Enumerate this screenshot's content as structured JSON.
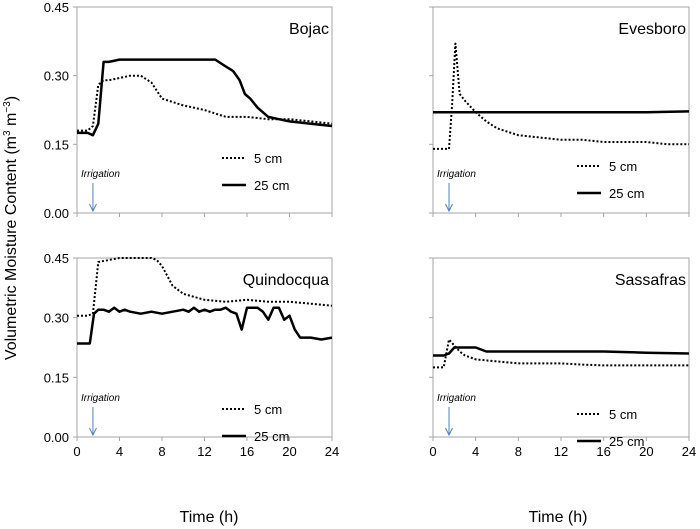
{
  "figure": {
    "ylabel_main": "Volumetric Moisture Content (m",
    "ylabel_sup1": "3",
    "ylabel_mid": " m",
    "ylabel_sup2": "−3",
    "ylabel_end": ")",
    "xlabel": "Time (h)"
  },
  "chart_data": [
    {
      "type": "line",
      "title": "Bojac",
      "xlabel": "Time (h)",
      "ylabel": "Volumetric Moisture Content (m3 m-3)",
      "xlim": [
        0,
        24
      ],
      "ylim": [
        0,
        0.45
      ],
      "xticks": [],
      "yticks": [
        "0.00",
        "0.15",
        "0.30",
        "0.45"
      ],
      "annotation": "Irrigation",
      "annotation_x": 1.5,
      "series": [
        {
          "name": "5 cm",
          "style": "dotted",
          "x": [
            0,
            1,
            1.5,
            2,
            2.5,
            3,
            4,
            5,
            6,
            7,
            8,
            10,
            12,
            14,
            16,
            18,
            20,
            22,
            24
          ],
          "y": [
            0.18,
            0.18,
            0.19,
            0.28,
            0.29,
            0.29,
            0.295,
            0.3,
            0.3,
            0.285,
            0.25,
            0.235,
            0.225,
            0.21,
            0.21,
            0.205,
            0.205,
            0.2,
            0.195
          ]
        },
        {
          "name": "25 cm",
          "style": "solid",
          "x": [
            0,
            1,
            1.5,
            2,
            2.5,
            3,
            4,
            6,
            8,
            10,
            12,
            13,
            14,
            14.7,
            15.3,
            15.8,
            16.3,
            17,
            18,
            19,
            20,
            22,
            24
          ],
          "y": [
            0.175,
            0.175,
            0.17,
            0.195,
            0.33,
            0.33,
            0.335,
            0.335,
            0.335,
            0.335,
            0.335,
            0.335,
            0.32,
            0.31,
            0.29,
            0.26,
            0.25,
            0.23,
            0.21,
            0.205,
            0.2,
            0.195,
            0.19
          ]
        }
      ]
    },
    {
      "type": "line",
      "title": "Evesboro",
      "xlabel": "Time (h)",
      "ylabel": "",
      "xlim": [
        0,
        24
      ],
      "ylim": [
        0,
        0.45
      ],
      "xticks": [],
      "yticks": [],
      "annotation": "Irrigation",
      "annotation_x": 1.5,
      "series": [
        {
          "name": "5 cm",
          "style": "dotted",
          "x": [
            0,
            1.5,
            1.8,
            2.1,
            2.5,
            3,
            4,
            5,
            6,
            8,
            10,
            12,
            14,
            16,
            18,
            20,
            22,
            24
          ],
          "y": [
            0.14,
            0.14,
            0.24,
            0.37,
            0.26,
            0.245,
            0.22,
            0.2,
            0.185,
            0.17,
            0.165,
            0.16,
            0.16,
            0.155,
            0.155,
            0.155,
            0.15,
            0.15
          ]
        },
        {
          "name": "25 cm",
          "style": "solid",
          "x": [
            0,
            4,
            8,
            12,
            16,
            20,
            24
          ],
          "y": [
            0.22,
            0.22,
            0.22,
            0.22,
            0.22,
            0.22,
            0.222
          ]
        }
      ]
    },
    {
      "type": "line",
      "title": "Quindocqua",
      "xlabel": "Time (h)",
      "ylabel": "",
      "xlim": [
        0,
        24
      ],
      "ylim": [
        0,
        0.45
      ],
      "xticks": [
        "0",
        "4",
        "8",
        "12",
        "16",
        "20",
        "24"
      ],
      "yticks": [
        "0.00",
        "0.15",
        "0.30",
        "0.45"
      ],
      "annotation": "Irrigation",
      "annotation_x": 1.5,
      "series": [
        {
          "name": "5 cm",
          "style": "dotted",
          "x": [
            0,
            1,
            1.5,
            2,
            3,
            4,
            6,
            7,
            7.5,
            8,
            9,
            10,
            12,
            14,
            16,
            18,
            20,
            22,
            24
          ],
          "y": [
            0.305,
            0.305,
            0.31,
            0.44,
            0.445,
            0.45,
            0.45,
            0.45,
            0.445,
            0.43,
            0.38,
            0.36,
            0.345,
            0.34,
            0.345,
            0.34,
            0.34,
            0.335,
            0.33
          ]
        },
        {
          "name": "25 cm",
          "style": "solid",
          "x": [
            0,
            1.2,
            1.6,
            2,
            2.5,
            3,
            3.5,
            4,
            4.5,
            5,
            6,
            7,
            8,
            9,
            10,
            10.5,
            11,
            11.5,
            12,
            12.5,
            13,
            13.5,
            14,
            14.5,
            15,
            15.5,
            16,
            16.5,
            17,
            17.5,
            18,
            18.5,
            19,
            19.5,
            20,
            20.5,
            21,
            22,
            23,
            24
          ],
          "y": [
            0.235,
            0.235,
            0.31,
            0.32,
            0.32,
            0.315,
            0.325,
            0.315,
            0.32,
            0.315,
            0.31,
            0.315,
            0.31,
            0.315,
            0.32,
            0.315,
            0.325,
            0.315,
            0.32,
            0.315,
            0.32,
            0.32,
            0.325,
            0.315,
            0.31,
            0.27,
            0.325,
            0.325,
            0.325,
            0.315,
            0.295,
            0.325,
            0.325,
            0.295,
            0.305,
            0.27,
            0.25,
            0.25,
            0.245,
            0.25
          ]
        }
      ]
    },
    {
      "type": "line",
      "title": "Sassafras",
      "xlabel": "Time (h)",
      "ylabel": "",
      "xlim": [
        0,
        24
      ],
      "ylim": [
        0,
        0.45
      ],
      "xticks": [
        "0",
        "4",
        "8",
        "12",
        "16",
        "20",
        "24"
      ],
      "yticks": [],
      "annotation": "Irrigation",
      "annotation_x": 1.5,
      "series": [
        {
          "name": "5 cm",
          "style": "dotted",
          "x": [
            0,
            1,
            1.5,
            2,
            2.5,
            3,
            4,
            6,
            8,
            10,
            12,
            14,
            16,
            18,
            20,
            22,
            24
          ],
          "y": [
            0.175,
            0.175,
            0.245,
            0.23,
            0.215,
            0.205,
            0.195,
            0.19,
            0.185,
            0.185,
            0.185,
            0.182,
            0.18,
            0.18,
            0.18,
            0.18,
            0.18
          ]
        },
        {
          "name": "25 cm",
          "style": "solid",
          "x": [
            0,
            1,
            1.5,
            2,
            4,
            5,
            6,
            8,
            12,
            16,
            20,
            24
          ],
          "y": [
            0.205,
            0.205,
            0.21,
            0.225,
            0.225,
            0.215,
            0.215,
            0.215,
            0.215,
            0.215,
            0.212,
            0.21
          ]
        }
      ]
    }
  ]
}
